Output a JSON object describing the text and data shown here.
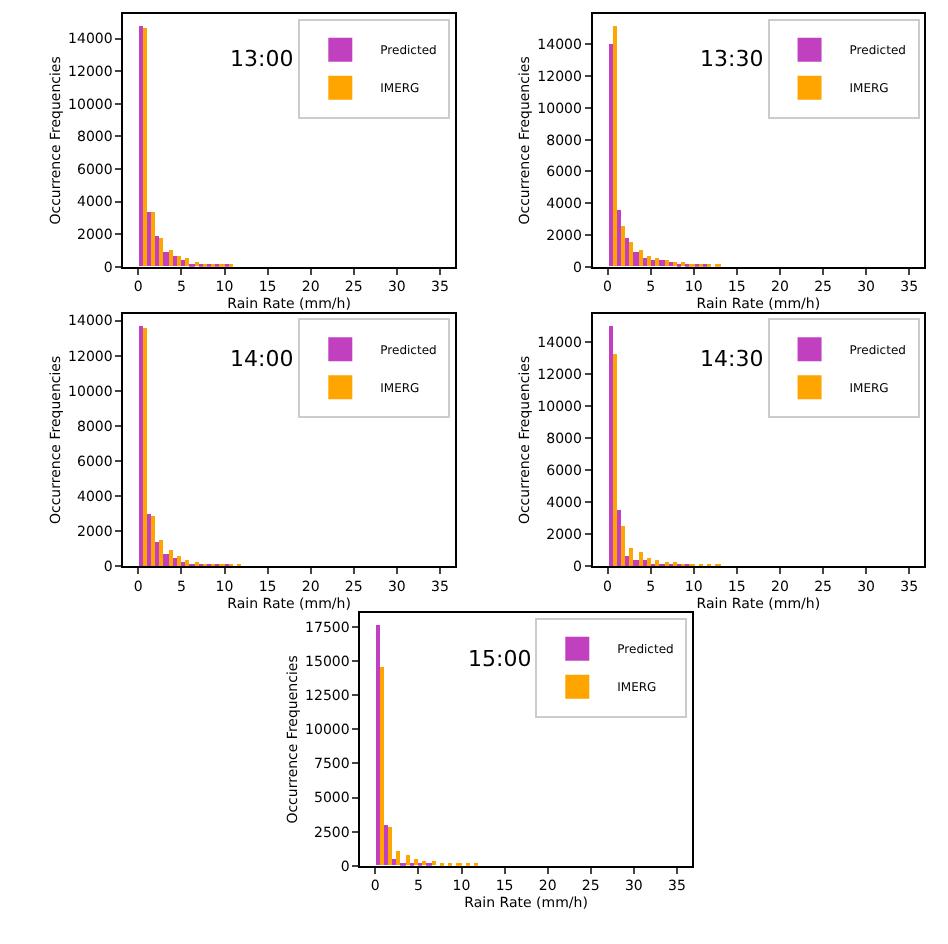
{
  "chart_data": [
    {
      "type": "histogram",
      "title": "13:00",
      "xlabel": "Rain Rate (mm/h)",
      "ylabel": "Occurrence Frequencies",
      "bins": [
        0,
        1,
        2,
        3,
        4,
        5,
        6,
        7,
        8,
        9,
        10,
        11,
        12,
        13,
        14,
        15,
        16
      ],
      "xlim": [
        -1.75,
        36.75
      ],
      "xticks": [
        0,
        5,
        10,
        15,
        20,
        25,
        30,
        35
      ],
      "ylim": [
        0,
        15500
      ],
      "yticks": [
        0,
        2000,
        4000,
        6000,
        8000,
        10000,
        12000,
        14000
      ],
      "legend": "top right",
      "series": [
        {
          "name": "Predicted",
          "color": "#c040c0",
          "values": [
            14800,
            3300,
            1900,
            900,
            600,
            400,
            200,
            200,
            100,
            100,
            100,
            0,
            0,
            0,
            0,
            0
          ]
        },
        {
          "name": "IMERG",
          "color": "#ffa500",
          "values": [
            14700,
            3400,
            1800,
            1000,
            600,
            500,
            300,
            200,
            100,
            100,
            100,
            0,
            0,
            0,
            0,
            0
          ]
        }
      ]
    },
    {
      "type": "histogram",
      "title": "13:30",
      "xlabel": "Rain Rate (mm/h)",
      "ylabel": "Occurrence Frequencies",
      "bins": [
        0,
        1,
        2,
        3,
        4,
        5,
        6,
        7,
        8,
        9,
        10,
        11,
        12,
        13,
        14,
        15,
        16
      ],
      "xlim": [
        -1.75,
        36.75
      ],
      "xticks": [
        0,
        5,
        10,
        15,
        20,
        25,
        30,
        35
      ],
      "ylim": [
        0,
        15900
      ],
      "yticks": [
        0,
        2000,
        4000,
        6000,
        8000,
        10000,
        12000,
        14000
      ],
      "legend": "top right",
      "series": [
        {
          "name": "Predicted",
          "color": "#c040c0",
          "values": [
            14000,
            3600,
            1800,
            900,
            500,
            400,
            400,
            300,
            200,
            100,
            100,
            100,
            0,
            0,
            0,
            0
          ]
        },
        {
          "name": "IMERG",
          "color": "#ffa500",
          "values": [
            15200,
            2600,
            1500,
            1000,
            700,
            500,
            400,
            300,
            300,
            200,
            100,
            100,
            100,
            0,
            0,
            0
          ]
        }
      ]
    },
    {
      "type": "histogram",
      "title": "14:00",
      "xlabel": "Rain Rate (mm/h)",
      "ylabel": "Occurrence Frequencies",
      "bins": [
        0,
        1,
        2,
        3,
        4,
        5,
        6,
        7,
        8,
        9,
        10,
        11,
        12,
        13,
        14,
        15,
        16,
        17
      ],
      "xlim": [
        -1.75,
        36.75
      ],
      "xticks": [
        0,
        5,
        10,
        15,
        20,
        25,
        30,
        35
      ],
      "ylim": [
        0,
        14400
      ],
      "yticks": [
        0,
        2000,
        4000,
        6000,
        8000,
        10000,
        12000,
        14000
      ],
      "legend": "top right",
      "series": [
        {
          "name": "Predicted",
          "color": "#c040c0",
          "values": [
            13700,
            3000,
            1400,
            700,
            500,
            300,
            200,
            200,
            100,
            100,
            100,
            0,
            0,
            0,
            0,
            0,
            0
          ]
        },
        {
          "name": "IMERG",
          "color": "#ffa500",
          "values": [
            13600,
            2900,
            1500,
            900,
            600,
            400,
            300,
            200,
            200,
            100,
            100,
            100,
            0,
            0,
            0,
            0,
            0
          ]
        }
      ]
    },
    {
      "type": "histogram",
      "title": "14:30",
      "xlabel": "Rain Rate (mm/h)",
      "ylabel": "Occurrence Frequencies",
      "bins": [
        0,
        1,
        2,
        3,
        4,
        5,
        6,
        7,
        8,
        9,
        10,
        11,
        12,
        13,
        14,
        15,
        16
      ],
      "xlim": [
        -1.75,
        36.75
      ],
      "xticks": [
        0,
        5,
        10,
        15,
        20,
        25,
        30,
        35
      ],
      "ylim": [
        0,
        15800
      ],
      "yticks": [
        0,
        2000,
        4000,
        6000,
        8000,
        10000,
        12000,
        14000
      ],
      "legend": "top right",
      "series": [
        {
          "name": "Predicted",
          "color": "#c040c0",
          "values": [
            15000,
            3500,
            700,
            400,
            400,
            200,
            200,
            100,
            100,
            100,
            0,
            0,
            0,
            0,
            0,
            0
          ]
        },
        {
          "name": "IMERG",
          "color": "#ffa500",
          "values": [
            13300,
            2600,
            1200,
            900,
            600,
            400,
            300,
            300,
            200,
            200,
            100,
            100,
            100,
            0,
            0,
            0
          ]
        }
      ]
    },
    {
      "type": "histogram",
      "title": "15:00",
      "xlabel": "Rain Rate (mm/h)",
      "ylabel": "Occurrence Frequencies",
      "bins": [
        0,
        1,
        2,
        3,
        4,
        5,
        6,
        7,
        8,
        9,
        10,
        11,
        12,
        13,
        14,
        15,
        16
      ],
      "xlim": [
        -1.75,
        36.75
      ],
      "xticks": [
        0,
        5,
        10,
        15,
        20,
        25,
        30,
        35
      ],
      "ylim": [
        0,
        18500
      ],
      "yticks": [
        0,
        2500,
        5000,
        7500,
        10000,
        12500,
        15000,
        17500
      ],
      "legend": "top right",
      "series": [
        {
          "name": "Predicted",
          "color": "#c040c0",
          "values": [
            17600,
            3000,
            500,
            200,
            100,
            100,
            100,
            0,
            0,
            0,
            0,
            0,
            0,
            0,
            0,
            0
          ]
        },
        {
          "name": "IMERG",
          "color": "#ffa500",
          "values": [
            14500,
            2800,
            1100,
            800,
            500,
            400,
            300,
            200,
            200,
            100,
            100,
            100,
            0,
            0,
            0,
            0
          ]
        }
      ]
    }
  ]
}
